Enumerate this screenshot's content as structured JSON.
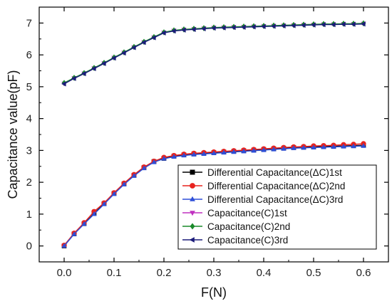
{
  "chart_data": {
    "type": "line",
    "xlabel": "F(N)",
    "ylabel": "Capacitance value(pF)",
    "xlim": [
      -0.05,
      0.65
    ],
    "ylim": [
      -0.5,
      7.5
    ],
    "xticks": [
      "0.0",
      "0.1",
      "0.2",
      "0.3",
      "0.4",
      "0.5",
      "0.6"
    ],
    "yticks": [
      "0",
      "1",
      "2",
      "3",
      "4",
      "5",
      "6",
      "7"
    ],
    "legend_position": "bottom-right",
    "x": [
      0.0,
      0.02,
      0.04,
      0.06,
      0.08,
      0.1,
      0.12,
      0.14,
      0.16,
      0.18,
      0.2,
      0.22,
      0.24,
      0.26,
      0.28,
      0.3,
      0.32,
      0.34,
      0.36,
      0.38,
      0.4,
      0.42,
      0.44,
      0.46,
      0.48,
      0.5,
      0.52,
      0.54,
      0.56,
      0.58,
      0.6
    ],
    "series": [
      {
        "name": "Differential Capacitance(ΔC)1st",
        "color": "#000000",
        "marker": "square",
        "values": [
          0.0,
          0.38,
          0.7,
          1.02,
          1.33,
          1.65,
          1.95,
          2.22,
          2.46,
          2.65,
          2.75,
          2.82,
          2.86,
          2.89,
          2.91,
          2.93,
          2.95,
          2.97,
          2.99,
          3.01,
          3.03,
          3.05,
          3.07,
          3.09,
          3.1,
          3.11,
          3.12,
          3.13,
          3.14,
          3.15,
          3.16
        ]
      },
      {
        "name": "Differential Capacitance(ΔC)2nd",
        "color": "#e8231f",
        "marker": "circle",
        "values": [
          0.02,
          0.4,
          0.73,
          1.08,
          1.35,
          1.67,
          1.97,
          2.24,
          2.48,
          2.66,
          2.78,
          2.84,
          2.88,
          2.91,
          2.93,
          2.95,
          2.97,
          2.99,
          3.01,
          3.03,
          3.05,
          3.07,
          3.09,
          3.11,
          3.12,
          3.14,
          3.15,
          3.16,
          3.18,
          3.19,
          3.21
        ]
      },
      {
        "name": "Differential Capacitance(ΔC)3rd",
        "color": "#2e4fd8",
        "marker": "triangle-up",
        "values": [
          0.0,
          0.37,
          0.69,
          1.0,
          1.31,
          1.63,
          1.93,
          2.2,
          2.44,
          2.63,
          2.74,
          2.8,
          2.84,
          2.87,
          2.89,
          2.91,
          2.93,
          2.95,
          2.97,
          2.99,
          3.01,
          3.03,
          3.05,
          3.07,
          3.08,
          3.09,
          3.1,
          3.11,
          3.12,
          3.13,
          3.14
        ]
      },
      {
        "name": "Capacitance(C)1st",
        "color": "#c030c0",
        "marker": "triangle-down",
        "values": [
          5.1,
          5.27,
          5.42,
          5.58,
          5.74,
          5.91,
          6.07,
          6.24,
          6.4,
          6.55,
          6.7,
          6.76,
          6.79,
          6.81,
          6.83,
          6.85,
          6.86,
          6.87,
          6.88,
          6.89,
          6.9,
          6.91,
          6.92,
          6.93,
          6.94,
          6.95,
          6.96,
          6.96,
          6.97,
          6.97,
          6.98
        ]
      },
      {
        "name": "Capacitance(C)2nd",
        "color": "#1a8a2a",
        "marker": "diamond",
        "values": [
          5.12,
          5.28,
          5.43,
          5.59,
          5.75,
          5.92,
          6.08,
          6.25,
          6.41,
          6.56,
          6.71,
          6.77,
          6.8,
          6.82,
          6.84,
          6.86,
          6.87,
          6.88,
          6.89,
          6.9,
          6.91,
          6.92,
          6.93,
          6.94,
          6.95,
          6.96,
          6.97,
          6.97,
          6.98,
          6.98,
          6.99
        ]
      },
      {
        "name": "Capacitance(C)3rd",
        "color": "#1c1c7a",
        "marker": "triangle-left",
        "values": [
          5.09,
          5.26,
          5.41,
          5.57,
          5.73,
          5.9,
          6.06,
          6.23,
          6.39,
          6.54,
          6.69,
          6.75,
          6.78,
          6.8,
          6.82,
          6.84,
          6.85,
          6.86,
          6.87,
          6.88,
          6.89,
          6.9,
          6.91,
          6.92,
          6.93,
          6.94,
          6.95,
          6.95,
          6.96,
          6.96,
          6.97
        ]
      }
    ]
  }
}
